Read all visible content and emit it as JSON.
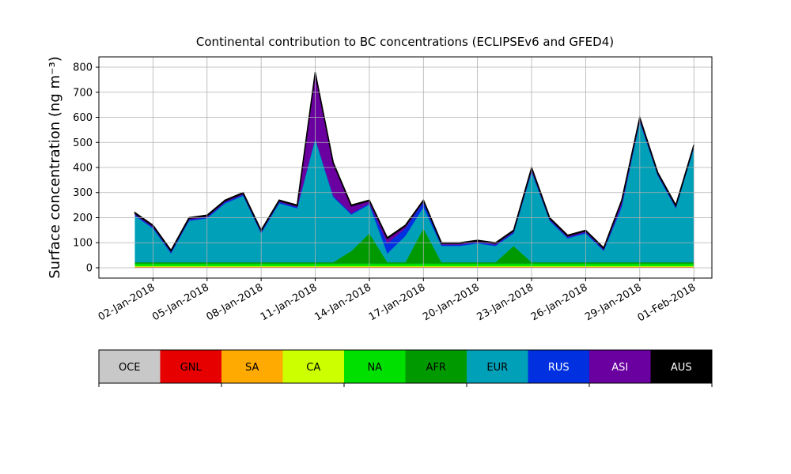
{
  "chart_data": {
    "type": "stacked_area",
    "title": "Continental contribution to BC concentrations (ECLIPSEv6 and GFED4)",
    "y_label": "Surface concentration (ng m⁻³)",
    "x": [
      "01-Jan-2018",
      "02-Jan-2018",
      "03-Jan-2018",
      "04-Jan-2018",
      "05-Jan-2018",
      "06-Jan-2018",
      "07-Jan-2018",
      "08-Jan-2018",
      "09-Jan-2018",
      "10-Jan-2018",
      "11-Jan-2018",
      "12-Jan-2018",
      "13-Jan-2018",
      "14-Jan-2018",
      "15-Jan-2018",
      "16-Jan-2018",
      "17-Jan-2018",
      "18-Jan-2018",
      "19-Jan-2018",
      "20-Jan-2018",
      "21-Jan-2018",
      "22-Jan-2018",
      "23-Jan-2018",
      "24-Jan-2018",
      "25-Jan-2018",
      "26-Jan-2018",
      "27-Jan-2018",
      "28-Jan-2018",
      "29-Jan-2018",
      "30-Jan-2018",
      "31-Jan-2018",
      "01-Feb-2018"
    ],
    "xlim": [
      "30-Dec-2017",
      "02-Feb-2018"
    ],
    "xticks": [
      "02-Jan-2018",
      "05-Jan-2018",
      "08-Jan-2018",
      "11-Jan-2018",
      "14-Jan-2018",
      "17-Jan-2018",
      "20-Jan-2018",
      "23-Jan-2018",
      "26-Jan-2018",
      "29-Jan-2018",
      "01-Feb-2018"
    ],
    "ylim": [
      -41,
      841
    ],
    "yticks": [
      0,
      100,
      200,
      300,
      400,
      500,
      600,
      700,
      800
    ],
    "grid": true,
    "series": [
      {
        "name": "OCE",
        "color": "#c8c8c8",
        "values": [
          1,
          1,
          1,
          1,
          1,
          1,
          1,
          1,
          1,
          1,
          1,
          1,
          1,
          1,
          1,
          1,
          1,
          1,
          1,
          1,
          1,
          1,
          1,
          1,
          1,
          1,
          1,
          1,
          1,
          1,
          1,
          1
        ]
      },
      {
        "name": "GNL",
        "color": "#e60000",
        "values": [
          1,
          1,
          1,
          1,
          1,
          1,
          1,
          1,
          1,
          1,
          1,
          1,
          1,
          1,
          1,
          1,
          1,
          1,
          1,
          1,
          1,
          1,
          1,
          1,
          1,
          1,
          1,
          1,
          1,
          1,
          1,
          1
        ]
      },
      {
        "name": "SA",
        "color": "#ffaa00",
        "values": [
          2,
          2,
          2,
          2,
          2,
          2,
          2,
          2,
          2,
          2,
          2,
          2,
          2,
          2,
          2,
          2,
          2,
          2,
          2,
          2,
          2,
          2,
          2,
          2,
          2,
          2,
          2,
          2,
          2,
          2,
          2,
          2
        ]
      },
      {
        "name": "CA",
        "color": "#ccff00",
        "values": [
          3,
          3,
          3,
          3,
          3,
          3,
          3,
          3,
          3,
          3,
          3,
          3,
          3,
          3,
          3,
          3,
          3,
          3,
          3,
          3,
          3,
          3,
          3,
          3,
          3,
          3,
          3,
          3,
          3,
          3,
          3,
          3
        ]
      },
      {
        "name": "NA",
        "color": "#00e000",
        "values": [
          10,
          10,
          10,
          10,
          10,
          10,
          10,
          10,
          10,
          10,
          10,
          10,
          10,
          10,
          10,
          10,
          10,
          10,
          10,
          10,
          10,
          10,
          10,
          10,
          10,
          10,
          10,
          10,
          10,
          10,
          10,
          10
        ]
      },
      {
        "name": "AFR",
        "color": "#009a00",
        "values": [
          5,
          5,
          5,
          5,
          5,
          5,
          5,
          5,
          5,
          5,
          5,
          5,
          50,
          120,
          5,
          5,
          140,
          5,
          5,
          5,
          5,
          70,
          5,
          5,
          5,
          5,
          5,
          5,
          5,
          5,
          5,
          5
        ]
      },
      {
        "name": "EUR",
        "color": "#00a0b8",
        "values": [
          185,
          135,
          35,
          165,
          175,
          235,
          265,
          115,
          235,
          215,
          490,
          260,
          145,
          115,
          35,
          105,
          85,
          65,
          65,
          75,
          65,
          50,
          360,
          165,
          95,
          115,
          45,
          220,
          560,
          345,
          215,
          455
        ]
      },
      {
        "name": "RUS",
        "color": "#0030e0",
        "values": [
          5,
          5,
          5,
          5,
          5,
          5,
          5,
          5,
          5,
          5,
          5,
          5,
          5,
          5,
          40,
          30,
          20,
          5,
          5,
          5,
          5,
          5,
          5,
          5,
          5,
          5,
          5,
          10,
          5,
          5,
          5,
          5
        ]
      },
      {
        "name": "ASI",
        "color": "#6a00a0",
        "values": [
          5,
          5,
          5,
          5,
          5,
          5,
          5,
          5,
          5,
          5,
          260,
          130,
          30,
          10,
          20,
          10,
          5,
          5,
          5,
          5,
          5,
          5,
          10,
          5,
          5,
          5,
          5,
          15,
          10,
          5,
          5,
          5
        ]
      },
      {
        "name": "AUS",
        "color": "#000000",
        "values": [
          3,
          3,
          3,
          3,
          3,
          3,
          3,
          3,
          3,
          3,
          3,
          3,
          3,
          3,
          3,
          3,
          3,
          3,
          3,
          3,
          3,
          3,
          3,
          3,
          3,
          3,
          3,
          3,
          3,
          3,
          3,
          3
        ]
      }
    ]
  }
}
